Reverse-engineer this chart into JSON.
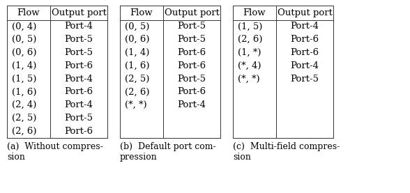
{
  "tables": [
    {
      "label": "(a)  Without compres-\nsion",
      "headers": [
        "Flow",
        "Output port"
      ],
      "rows": [
        [
          "(0, 4)",
          "Port-4"
        ],
        [
          "(0, 5)",
          "Port-5"
        ],
        [
          "(0, 6)",
          "Port-5"
        ],
        [
          "(1, 4)",
          "Port-6"
        ],
        [
          "(1, 5)",
          "Port-4"
        ],
        [
          "(1, 6)",
          "Port-6"
        ],
        [
          "(2, 4)",
          "Port-4"
        ],
        [
          "(2, 5)",
          "Port-5"
        ],
        [
          "(2, 6)",
          "Port-6"
        ]
      ],
      "n_total_rows": 9
    },
    {
      "label": "(b)  Default port com-\npression",
      "headers": [
        "Flow",
        "Output port"
      ],
      "rows": [
        [
          "(0, 5)",
          "Port-5"
        ],
        [
          "(0, 6)",
          "Port-5"
        ],
        [
          "(1, 4)",
          "Port-6"
        ],
        [
          "(1, 6)",
          "Port-6"
        ],
        [
          "(2, 5)",
          "Port-5"
        ],
        [
          "(2, 6)",
          "Port-6"
        ],
        [
          "(*, *)",
          "Port-4"
        ]
      ],
      "n_total_rows": 9
    },
    {
      "label": "(c)  Multi-field compres-\nsion",
      "headers": [
        "Flow",
        "Output port"
      ],
      "rows": [
        [
          "(1, 5)",
          "Port-4"
        ],
        [
          "(2, 6)",
          "Port-6"
        ],
        [
          "(1, *)",
          "Port-6"
        ],
        [
          "(*, 4)",
          "Port-4"
        ],
        [
          "(*, *)",
          "Port-5"
        ]
      ],
      "n_total_rows": 9
    }
  ],
  "fig_width": 5.88,
  "fig_height": 2.77,
  "font_size": 9.5,
  "caption_font_size": 9.0,
  "text_color": "#000000",
  "bg_color": "#ffffff",
  "line_color": "#333333"
}
